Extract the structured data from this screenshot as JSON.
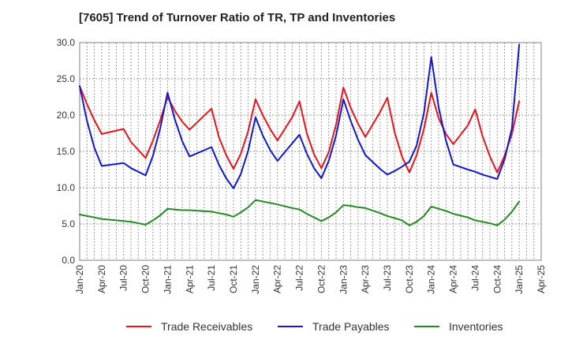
{
  "chart_data": {
    "type": "line",
    "title": "[7605]  Trend of Turnover Ratio of TR, TP and Inventories",
    "xlabel": "",
    "ylabel": "",
    "ylim": [
      0,
      30
    ],
    "yticks": [
      "0.0",
      "5.0",
      "10.0",
      "15.0",
      "20.0",
      "25.0",
      "30.0"
    ],
    "xlim": [
      "2020-01",
      "2025-01"
    ],
    "xticks": [
      "Jan-20",
      "Apr-20",
      "Jul-20",
      "Oct-20",
      "Jan-21",
      "Apr-21",
      "Jul-21",
      "Oct-21",
      "Jan-22",
      "Apr-22",
      "Jul-22",
      "Oct-22",
      "Jan-23",
      "Apr-23",
      "Jul-23",
      "Oct-23",
      "Jan-24",
      "Apr-24",
      "Jul-24",
      "Oct-24",
      "Jan-25",
      "Apr-25"
    ],
    "grid": true,
    "legend_position": "bottom",
    "x": [
      "2020-01",
      "2020-02",
      "2020-03",
      "2020-04",
      "2020-07",
      "2020-08",
      "2020-10",
      "2020-11",
      "2020-12",
      "2021-01",
      "2021-02",
      "2021-03",
      "2021-04",
      "2021-07",
      "2021-08",
      "2021-09",
      "2021-10",
      "2021-11",
      "2021-12",
      "2022-01",
      "2022-02",
      "2022-03",
      "2022-04",
      "2022-06",
      "2022-07",
      "2022-08",
      "2022-09",
      "2022-10",
      "2022-11",
      "2022-12",
      "2023-01",
      "2023-02",
      "2023-03",
      "2023-04",
      "2023-06",
      "2023-07",
      "2023-08",
      "2023-09",
      "2023-10",
      "2023-11",
      "2023-12",
      "2024-01",
      "2024-02",
      "2024-03",
      "2024-04",
      "2024-06",
      "2024-07",
      "2024-08",
      "2024-09",
      "2024-10",
      "2024-11",
      "2024-12",
      "2025-01"
    ],
    "series": [
      {
        "name": "Trade Receivables",
        "color": "#e8141b",
        "values": [
          24.0,
          21.5,
          19.3,
          17.4,
          18.1,
          16.3,
          14.1,
          16.5,
          19.3,
          22.5,
          20.6,
          19.1,
          18.0,
          20.9,
          17.0,
          14.5,
          12.6,
          14.7,
          17.8,
          22.2,
          20.0,
          18.1,
          16.5,
          19.7,
          21.9,
          17.5,
          14.6,
          12.7,
          14.9,
          18.7,
          23.8,
          21.0,
          18.8,
          17.0,
          20.4,
          22.4,
          17.6,
          14.3,
          12.1,
          14.5,
          18.1,
          23.1,
          19.6,
          17.4,
          16.0,
          18.6,
          20.8,
          17.1,
          14.3,
          12.1,
          14.4,
          17.4,
          21.9
        ]
      },
      {
        "name": "Trade Payables",
        "color": "#1017cf",
        "values": [
          24.0,
          19.2,
          15.5,
          13.0,
          13.4,
          12.7,
          11.7,
          14.4,
          18.2,
          23.1,
          19.4,
          16.4,
          14.3,
          15.6,
          13.2,
          11.3,
          9.9,
          11.9,
          15.1,
          19.7,
          17.2,
          15.2,
          13.7,
          16.1,
          17.3,
          14.7,
          12.7,
          11.3,
          13.7,
          17.2,
          22.2,
          19.2,
          16.6,
          14.5,
          12.6,
          11.8,
          12.3,
          12.9,
          13.6,
          15.8,
          20.3,
          28.0,
          21.1,
          16.5,
          13.2,
          12.5,
          12.2,
          11.8,
          11.5,
          11.2,
          13.9,
          18.2,
          29.7
        ]
      },
      {
        "name": "Inventories",
        "color": "#238b22",
        "values": [
          6.3,
          6.1,
          5.9,
          5.7,
          5.4,
          5.3,
          4.9,
          5.5,
          6.2,
          7.1,
          7.0,
          6.9,
          6.9,
          6.7,
          6.5,
          6.3,
          6.0,
          6.6,
          7.3,
          8.3,
          8.1,
          7.9,
          7.7,
          7.2,
          7.0,
          6.4,
          5.9,
          5.4,
          5.9,
          6.6,
          7.6,
          7.5,
          7.3,
          7.2,
          6.5,
          6.1,
          5.8,
          5.5,
          4.8,
          5.3,
          6.1,
          7.4,
          7.1,
          6.8,
          6.4,
          5.9,
          5.5,
          5.3,
          5.1,
          4.8,
          5.6,
          6.7,
          8.1
        ]
      }
    ]
  }
}
